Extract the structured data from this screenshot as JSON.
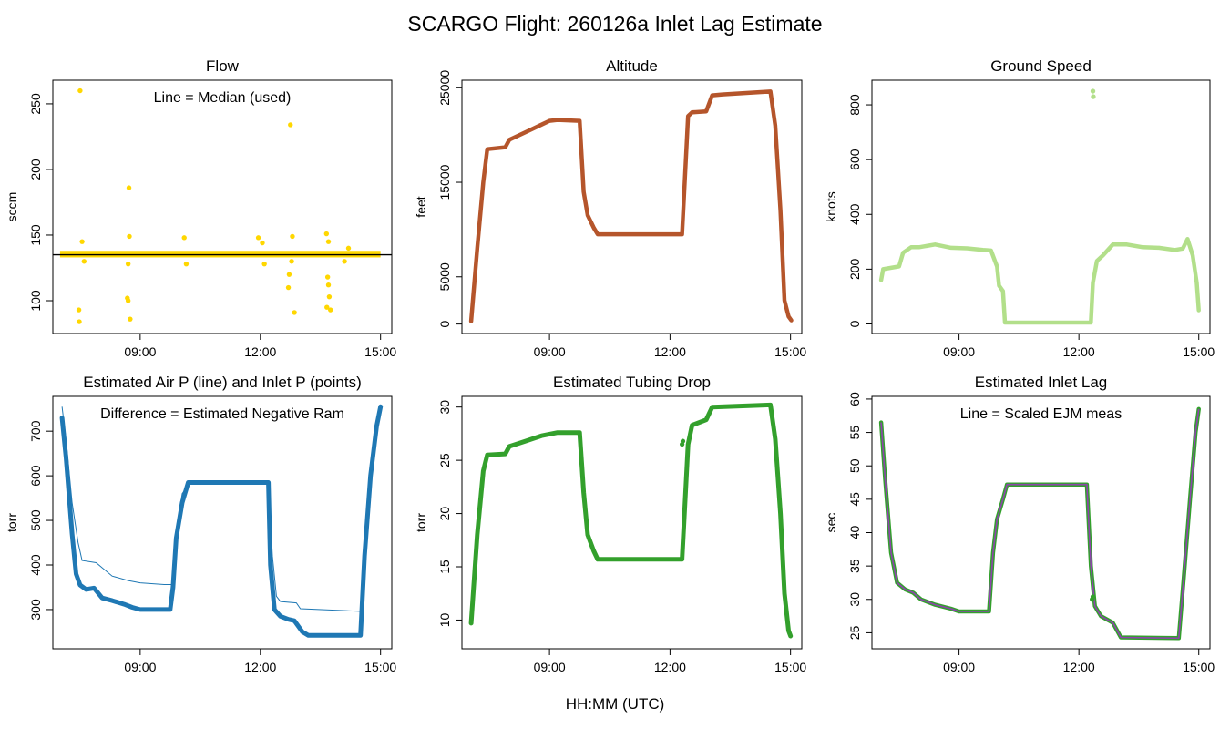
{
  "figure": {
    "title": "SCARGO Flight: 260126a  Inlet Lag Estimate",
    "xlabel": "HH:MM (UTC)"
  },
  "chart_data": [
    {
      "id": "flow",
      "type": "scatter",
      "title": "Flow",
      "ylabel": "sccm",
      "annotation": "Line = Median (used)",
      "x_ticks": [
        9,
        12,
        15
      ],
      "x_tick_labels": [
        "09:00",
        "12:00",
        "15:00"
      ],
      "xlim": [
        6.82,
        15.28
      ],
      "y_ticks": [
        100,
        150,
        200,
        250
      ],
      "y_tick_labels": [
        "100",
        "150",
        "200",
        "250"
      ],
      "ylim": [
        75,
        268
      ],
      "point_color": "#FFD700",
      "line_color": "#000000",
      "median_line": 135,
      "band": {
        "x": [
          7.0,
          15.0
        ],
        "lo": 133,
        "hi": 138
      },
      "points": [
        [
          7.5,
          260
        ],
        [
          7.48,
          84
        ],
        [
          7.47,
          93
        ],
        [
          7.55,
          145
        ],
        [
          7.6,
          130
        ],
        [
          8.72,
          186
        ],
        [
          8.7,
          100
        ],
        [
          8.68,
          102
        ],
        [
          8.75,
          86
        ],
        [
          8.73,
          149
        ],
        [
          8.7,
          128
        ],
        [
          10.1,
          148
        ],
        [
          10.15,
          128
        ],
        [
          11.95,
          148
        ],
        [
          12.05,
          144
        ],
        [
          12.1,
          128
        ],
        [
          12.75,
          234
        ],
        [
          12.8,
          149
        ],
        [
          12.72,
          120
        ],
        [
          12.7,
          110
        ],
        [
          12.85,
          91
        ],
        [
          12.78,
          130
        ],
        [
          13.65,
          151
        ],
        [
          13.7,
          145
        ],
        [
          13.68,
          118
        ],
        [
          13.7,
          112
        ],
        [
          13.72,
          103
        ],
        [
          13.75,
          93
        ],
        [
          13.66,
          95
        ],
        [
          14.1,
          130
        ],
        [
          14.2,
          140
        ]
      ]
    },
    {
      "id": "altitude",
      "type": "line",
      "title": "Altitude",
      "ylabel": "feet",
      "x_ticks": [
        9,
        12,
        15
      ],
      "x_tick_labels": [
        "09:00",
        "12:00",
        "15:00"
      ],
      "xlim": [
        6.82,
        15.28
      ],
      "y_ticks": [
        0,
        5000,
        15000,
        25000
      ],
      "y_tick_labels": [
        "0",
        "5000",
        "15000",
        "25000"
      ],
      "ylim": [
        -1000,
        25800
      ],
      "color": "#B5552B",
      "line_width": 4.5,
      "series": [
        [
          7.05,
          300
        ],
        [
          7.2,
          8000
        ],
        [
          7.35,
          15000
        ],
        [
          7.45,
          18500
        ],
        [
          7.9,
          18700
        ],
        [
          8.0,
          19500
        ],
        [
          8.4,
          20300
        ],
        [
          8.75,
          21000
        ],
        [
          9.0,
          21500
        ],
        [
          9.2,
          21600
        ],
        [
          9.75,
          21500
        ],
        [
          9.85,
          14000
        ],
        [
          9.95,
          11500
        ],
        [
          10.1,
          10200
        ],
        [
          10.2,
          9500
        ],
        [
          12.3,
          9500
        ],
        [
          12.45,
          22000
        ],
        [
          12.55,
          22400
        ],
        [
          12.9,
          22500
        ],
        [
          13.05,
          24200
        ],
        [
          13.3,
          24300
        ],
        [
          14.5,
          24600
        ],
        [
          14.62,
          21000
        ],
        [
          14.75,
          12000
        ],
        [
          14.85,
          2500
        ],
        [
          14.95,
          800
        ],
        [
          15.02,
          400
        ]
      ]
    },
    {
      "id": "ground_speed",
      "type": "line",
      "title": "Ground Speed",
      "ylabel": "knots",
      "x_ticks": [
        9,
        12,
        15
      ],
      "x_tick_labels": [
        "09:00",
        "12:00",
        "15:00"
      ],
      "xlim": [
        6.82,
        15.28
      ],
      "y_ticks": [
        0,
        200,
        400,
        600,
        800
      ],
      "y_tick_labels": [
        "0",
        "200",
        "400",
        "600",
        "800"
      ],
      "ylim": [
        -35,
        890
      ],
      "color": "#B2DF8A",
      "line_width": 4.5,
      "series": [
        [
          7.05,
          160
        ],
        [
          7.1,
          200
        ],
        [
          7.3,
          205
        ],
        [
          7.5,
          210
        ],
        [
          7.6,
          260
        ],
        [
          7.8,
          280
        ],
        [
          8.0,
          280
        ],
        [
          8.4,
          290
        ],
        [
          8.8,
          278
        ],
        [
          9.2,
          276
        ],
        [
          9.6,
          270
        ],
        [
          9.8,
          268
        ],
        [
          9.95,
          210
        ],
        [
          10.0,
          140
        ],
        [
          10.1,
          120
        ],
        [
          10.15,
          5
        ],
        [
          12.3,
          5
        ],
        [
          12.35,
          150
        ],
        [
          12.45,
          230
        ],
        [
          12.6,
          250
        ],
        [
          12.85,
          290
        ],
        [
          13.2,
          290
        ],
        [
          13.6,
          280
        ],
        [
          14.0,
          278
        ],
        [
          14.4,
          270
        ],
        [
          14.6,
          275
        ],
        [
          14.72,
          310
        ],
        [
          14.85,
          250
        ],
        [
          14.95,
          150
        ],
        [
          15.0,
          50
        ]
      ],
      "outliers": [
        [
          12.35,
          850
        ],
        [
          12.36,
          830
        ]
      ]
    },
    {
      "id": "air_inlet_p",
      "type": "scatter",
      "title": "Estimated Air P (line) and Inlet P (points)",
      "ylabel": "torr",
      "annotation": "Difference = Estimated Negative Ram",
      "x_ticks": [
        9,
        12,
        15
      ],
      "x_tick_labels": [
        "09:00",
        "12:00",
        "15:00"
      ],
      "xlim": [
        6.82,
        15.28
      ],
      "y_ticks": [
        300,
        400,
        500,
        600,
        700
      ],
      "y_tick_labels": [
        "300",
        "400",
        "500",
        "600",
        "700"
      ],
      "ylim": [
        212,
        778
      ],
      "color": "#1F78B4",
      "line_width": 1,
      "point_width": 5,
      "line_series": [
        [
          7.05,
          755
        ],
        [
          7.15,
          680
        ],
        [
          7.3,
          540
        ],
        [
          7.45,
          450
        ],
        [
          7.55,
          410
        ],
        [
          7.9,
          405
        ],
        [
          8.3,
          375
        ],
        [
          8.7,
          365
        ],
        [
          9.0,
          360
        ],
        [
          9.6,
          356
        ],
        [
          9.82,
          356
        ],
        [
          9.9,
          480
        ],
        [
          10.05,
          560
        ],
        [
          10.25,
          585
        ],
        [
          12.2,
          585
        ],
        [
          12.3,
          420
        ],
        [
          12.4,
          330
        ],
        [
          12.5,
          318
        ],
        [
          12.9,
          315
        ],
        [
          13.0,
          302
        ],
        [
          14.5,
          296
        ],
        [
          14.62,
          440
        ],
        [
          14.78,
          650
        ],
        [
          14.92,
          735
        ],
        [
          15.0,
          748
        ]
      ],
      "point_series": [
        [
          7.05,
          730
        ],
        [
          7.15,
          640
        ],
        [
          7.3,
          470
        ],
        [
          7.4,
          380
        ],
        [
          7.5,
          355
        ],
        [
          7.65,
          345
        ],
        [
          7.85,
          348
        ],
        [
          8.05,
          326
        ],
        [
          8.3,
          320
        ],
        [
          8.6,
          312
        ],
        [
          8.8,
          305
        ],
        [
          9.0,
          300
        ],
        [
          9.75,
          300
        ],
        [
          9.82,
          350
        ],
        [
          9.9,
          460
        ],
        [
          10.05,
          540
        ],
        [
          10.2,
          585
        ],
        [
          12.2,
          585
        ],
        [
          12.25,
          400
        ],
        [
          12.35,
          300
        ],
        [
          12.5,
          285
        ],
        [
          12.7,
          278
        ],
        [
          12.85,
          275
        ],
        [
          13.05,
          250
        ],
        [
          13.2,
          242
        ],
        [
          14.5,
          242
        ],
        [
          14.6,
          420
        ],
        [
          14.75,
          600
        ],
        [
          14.9,
          710
        ],
        [
          15.0,
          755
        ]
      ]
    },
    {
      "id": "tubing_drop",
      "type": "line",
      "title": "Estimated Tubing Drop",
      "ylabel": "torr",
      "x_ticks": [
        9,
        12,
        15
      ],
      "x_tick_labels": [
        "09:00",
        "12:00",
        "15:00"
      ],
      "xlim": [
        6.82,
        15.28
      ],
      "y_ticks": [
        10,
        15,
        20,
        25,
        30
      ],
      "y_tick_labels": [
        "10",
        "15",
        "20",
        "25",
        "30"
      ],
      "ylim": [
        7.3,
        31.0
      ],
      "color": "#33A02C",
      "line_width": 5,
      "series": [
        [
          7.05,
          9.7
        ],
        [
          7.2,
          18
        ],
        [
          7.35,
          24
        ],
        [
          7.45,
          25.5
        ],
        [
          7.9,
          25.6
        ],
        [
          8.0,
          26.3
        ],
        [
          8.4,
          26.8
        ],
        [
          8.8,
          27.3
        ],
        [
          9.2,
          27.6
        ],
        [
          9.75,
          27.6
        ],
        [
          9.85,
          22
        ],
        [
          9.95,
          18
        ],
        [
          10.1,
          16.5
        ],
        [
          10.2,
          15.7
        ],
        [
          12.3,
          15.7
        ],
        [
          12.45,
          26.5
        ],
        [
          12.55,
          28.3
        ],
        [
          12.9,
          28.8
        ],
        [
          13.05,
          30
        ],
        [
          14.5,
          30.2
        ],
        [
          14.62,
          27
        ],
        [
          14.75,
          20
        ],
        [
          14.85,
          12.5
        ],
        [
          14.95,
          9
        ],
        [
          15.0,
          8.5
        ]
      ],
      "extra_points": [
        [
          12.3,
          26.5
        ],
        [
          12.32,
          26.8
        ]
      ]
    },
    {
      "id": "inlet_lag",
      "type": "line",
      "title": "Estimated Inlet Lag",
      "ylabel": "sec",
      "annotation": "Line = Scaled EJM meas",
      "x_ticks": [
        9,
        12,
        15
      ],
      "x_tick_labels": [
        "09:00",
        "12:00",
        "15:00"
      ],
      "xlim": [
        6.82,
        15.28
      ],
      "y_ticks": [
        25,
        30,
        35,
        40,
        45,
        50,
        55,
        60
      ],
      "y_tick_labels": [
        "25",
        "30",
        "35",
        "40",
        "45",
        "50",
        "55",
        "60"
      ],
      "ylim": [
        22.6,
        60.4
      ],
      "point_color": "#33A02C",
      "line_color": "#8E44AD",
      "line_width": 3,
      "point_width": 4.5,
      "series": [
        [
          7.05,
          56.5
        ],
        [
          7.15,
          48
        ],
        [
          7.3,
          37
        ],
        [
          7.45,
          32.5
        ],
        [
          7.65,
          31.5
        ],
        [
          7.85,
          31
        ],
        [
          8.05,
          30
        ],
        [
          8.4,
          29.2
        ],
        [
          8.8,
          28.6
        ],
        [
          9.0,
          28.2
        ],
        [
          9.75,
          28.2
        ],
        [
          9.85,
          37
        ],
        [
          9.95,
          42
        ],
        [
          10.1,
          45
        ],
        [
          10.2,
          47.2
        ],
        [
          12.2,
          47.2
        ],
        [
          12.3,
          35
        ],
        [
          12.4,
          29
        ],
        [
          12.55,
          27.5
        ],
        [
          12.85,
          26.5
        ],
        [
          13.05,
          24.3
        ],
        [
          14.5,
          24.2
        ],
        [
          14.62,
          33
        ],
        [
          14.78,
          45
        ],
        [
          14.92,
          55
        ],
        [
          15.0,
          58.5
        ]
      ],
      "extra_points": [
        [
          12.33,
          30
        ],
        [
          12.35,
          30.4
        ]
      ]
    }
  ]
}
